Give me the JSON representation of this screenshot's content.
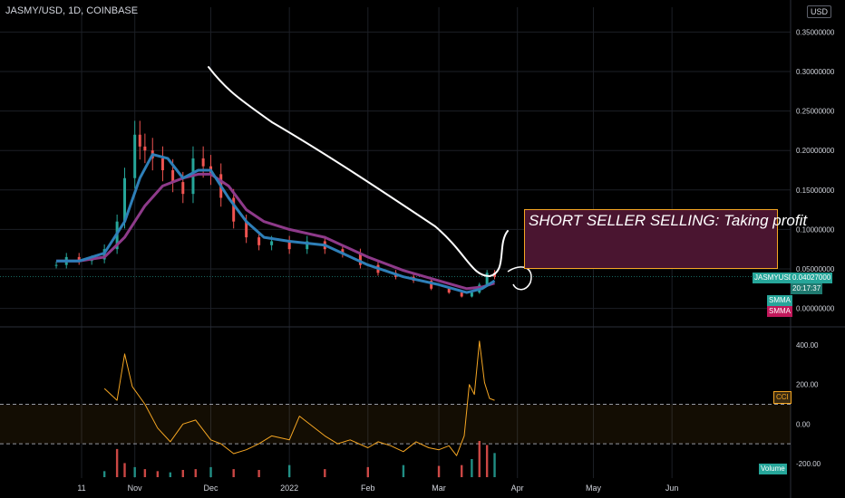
{
  "symbol_title": "JASMY/USD, 1D, COINBASE",
  "currency_badge": "USD",
  "annotation_text": "SHORT SELLER SELLING: Taking profit",
  "price_tag": {
    "symbol": "JASMYUSD",
    "price": "0.04027000",
    "countdown": "20:17:37"
  },
  "indicator_tags": {
    "smma1": "SMMA",
    "smma2": "SMMA",
    "cci": "CCI",
    "volume": "Volume"
  },
  "colors": {
    "background": "#000000",
    "up_candle": "#26a69a",
    "down_candle": "#ef5350",
    "smma_fast": "#2e7fb8",
    "smma_slow": "#8e3a8a",
    "cci_line": "#f5a623",
    "annotation_fill": "#4a1530",
    "annotation_border": "#f5a623",
    "price_tag": "#26a69a",
    "smma_fast_tag": "#26a69a",
    "smma_slow_tag": "#c2185b",
    "cci_tag_border": "#f5a623",
    "volume_tag": "#26a69a"
  },
  "chart_data": [
    {
      "type": "line",
      "title": "JASMY/USD, 1D, COINBASE",
      "ylim": [
        -0.02,
        0.37
      ],
      "y_ticks": [
        0.0,
        0.05,
        0.1,
        0.15,
        0.2,
        0.25,
        0.3,
        0.35
      ],
      "y_tick_labels": [
        "0.00000000",
        "0.05000000",
        "0.10000000",
        "0.15000000",
        "0.20000000",
        "0.25000000",
        "0.30000000",
        "0.35000000"
      ],
      "x_tick_labels": [
        "11",
        "Nov",
        "Dec",
        "2022",
        "Feb",
        "Mar",
        "Apr",
        "May",
        "Jun"
      ],
      "x_ticks": [
        "2021-10-11",
        "2021-11-01",
        "2021-12-01",
        "2022-01-01",
        "2022-02-01",
        "2022-03-01",
        "2022-04-01",
        "2022-05-01",
        "2022-06-01"
      ],
      "grid": true,
      "series": [
        {
          "name": "JASMYUSD",
          "style": "candlestick",
          "x": [
            "2021-10-01",
            "2021-10-05",
            "2021-10-10",
            "2021-10-15",
            "2021-10-20",
            "2021-10-25",
            "2021-10-28",
            "2021-11-01",
            "2021-11-03",
            "2021-11-05",
            "2021-11-08",
            "2021-11-12",
            "2021-11-16",
            "2021-11-20",
            "2021-11-24",
            "2021-11-28",
            "2021-12-01",
            "2021-12-05",
            "2021-12-10",
            "2021-12-15",
            "2021-12-20",
            "2021-12-25",
            "2022-01-01",
            "2022-01-08",
            "2022-01-15",
            "2022-01-22",
            "2022-01-29",
            "2022-02-05",
            "2022-02-12",
            "2022-02-19",
            "2022-02-26",
            "2022-03-05",
            "2022-03-10",
            "2022-03-14",
            "2022-03-17",
            "2022-03-20",
            "2022-03-23"
          ],
          "y": [
            0.055,
            0.065,
            0.06,
            0.062,
            0.075,
            0.11,
            0.165,
            0.22,
            0.205,
            0.2,
            0.19,
            0.175,
            0.16,
            0.145,
            0.19,
            0.18,
            0.17,
            0.14,
            0.11,
            0.09,
            0.08,
            0.085,
            0.075,
            0.085,
            0.075,
            0.07,
            0.055,
            0.045,
            0.04,
            0.035,
            0.025,
            0.02,
            0.015,
            0.02,
            0.03,
            0.045,
            0.04
          ]
        },
        {
          "name": "SMMA",
          "x": [
            "2021-10-01",
            "2021-10-10",
            "2021-10-20",
            "2021-10-28",
            "2021-11-03",
            "2021-11-08",
            "2021-11-14",
            "2021-11-20",
            "2021-11-26",
            "2021-12-01",
            "2021-12-08",
            "2021-12-15",
            "2021-12-22",
            "2022-01-01",
            "2022-01-15",
            "2022-02-01",
            "2022-02-15",
            "2022-03-01",
            "2022-03-12",
            "2022-03-18",
            "2022-03-23"
          ],
          "y": [
            0.06,
            0.06,
            0.07,
            0.11,
            0.165,
            0.195,
            0.19,
            0.165,
            0.175,
            0.175,
            0.14,
            0.11,
            0.09,
            0.085,
            0.08,
            0.055,
            0.04,
            0.03,
            0.02,
            0.025,
            0.035
          ]
        },
        {
          "name": "SMMA",
          "x": [
            "2021-10-01",
            "2021-10-10",
            "2021-10-20",
            "2021-10-28",
            "2021-11-05",
            "2021-11-12",
            "2021-11-20",
            "2021-11-26",
            "2021-12-01",
            "2021-12-08",
            "2021-12-15",
            "2021-12-22",
            "2022-01-01",
            "2022-01-15",
            "2022-02-01",
            "2022-02-15",
            "2022-03-01",
            "2022-03-12",
            "2022-03-18",
            "2022-03-23"
          ],
          "y": [
            0.06,
            0.06,
            0.065,
            0.09,
            0.13,
            0.155,
            0.165,
            0.17,
            0.17,
            0.155,
            0.125,
            0.11,
            0.1,
            0.09,
            0.065,
            0.048,
            0.035,
            0.025,
            0.027,
            0.032
          ]
        }
      ]
    },
    {
      "type": "line",
      "title": "CCI",
      "ylim": [
        -260,
        460
      ],
      "y_ticks": [
        -200,
        0,
        200,
        400
      ],
      "y_tick_labels": [
        "-200.00",
        "0.00",
        "200.00",
        "400.00"
      ],
      "bands": [
        100,
        -100
      ],
      "series": [
        {
          "name": "CCI",
          "x": [
            "2021-10-20",
            "2021-10-25",
            "2021-10-28",
            "2021-10-31",
            "2021-11-05",
            "2021-11-10",
            "2021-11-15",
            "2021-11-20",
            "2021-11-25",
            "2021-12-01",
            "2021-12-05",
            "2021-12-10",
            "2021-12-15",
            "2021-12-20",
            "2021-12-25",
            "2022-01-01",
            "2022-01-05",
            "2022-01-10",
            "2022-01-15",
            "2022-01-20",
            "2022-01-25",
            "2022-02-01",
            "2022-02-05",
            "2022-02-10",
            "2022-02-15",
            "2022-02-20",
            "2022-02-25",
            "2022-03-01",
            "2022-03-05",
            "2022-03-08",
            "2022-03-11",
            "2022-03-13",
            "2022-03-15",
            "2022-03-17",
            "2022-03-19",
            "2022-03-21",
            "2022-03-23"
          ],
          "y": [
            180,
            120,
            355,
            190,
            100,
            -20,
            -90,
            0,
            20,
            -80,
            -100,
            -150,
            -130,
            -100,
            -60,
            -80,
            40,
            -10,
            -60,
            -100,
            -80,
            -120,
            -90,
            -110,
            -140,
            -90,
            -120,
            -130,
            -110,
            -160,
            -60,
            200,
            150,
            420,
            210,
            130,
            120
          ]
        }
      ]
    },
    {
      "type": "bar",
      "title": "Volume",
      "series": [
        {
          "name": "Volume",
          "x": [
            "2021-10-20",
            "2021-10-25",
            "2021-10-28",
            "2021-11-01",
            "2021-11-05",
            "2021-11-10",
            "2021-11-15",
            "2021-11-20",
            "2021-11-25",
            "2021-12-01",
            "2021-12-10",
            "2021-12-20",
            "2022-01-01",
            "2022-01-15",
            "2022-02-01",
            "2022-02-15",
            "2022-03-01",
            "2022-03-10",
            "2022-03-14",
            "2022-03-17",
            "2022-03-20",
            "2022-03-23"
          ],
          "values": [
            0.15,
            0.7,
            0.35,
            0.25,
            0.2,
            0.15,
            0.12,
            0.18,
            0.2,
            0.25,
            0.2,
            0.18,
            0.3,
            0.2,
            0.25,
            0.3,
            0.28,
            0.3,
            0.45,
            0.9,
            0.8,
            0.6
          ]
        }
      ]
    }
  ]
}
